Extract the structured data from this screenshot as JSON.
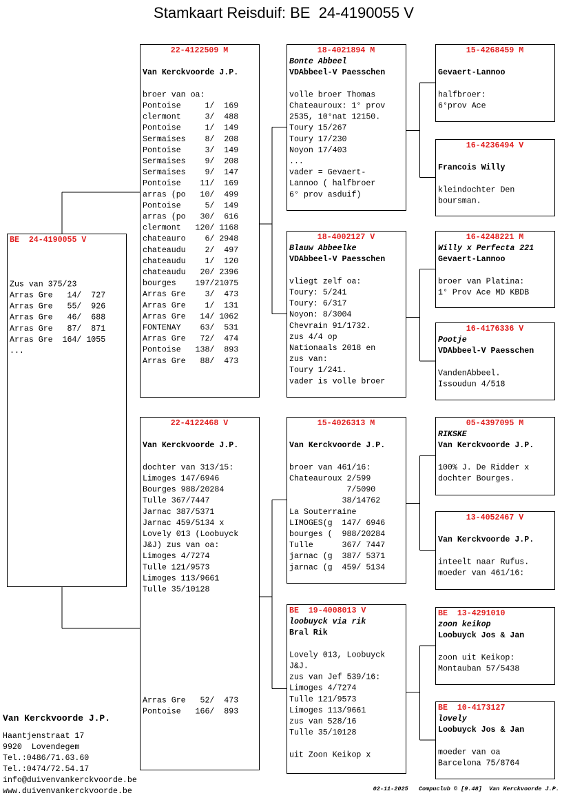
{
  "header": {
    "title": "Stamkaart Reisduif: BE  24-4190055 V"
  },
  "pigeons": [
    {
      "ring": "BE  24-4190055 V",
      "notes": [
        "Zus van 375/23",
        "Arras Gre   14/  727",
        "Arras Gre   55/  926",
        "Arras Gre   46/  688",
        "Arras Gre   87/  871",
        "Arras Gre  164/ 1055",
        "..."
      ]
    },
    {
      "ring": "22-4122509 M",
      "owner": "Van Kerckvoorde J.P.",
      "notes": [
        "broer van oa:",
        "Pontoise     1/  169",
        "clermont     3/  488",
        "Pontoise     1/  149",
        "Sermaises    8/  208",
        "Pontoise     3/  149",
        "Sermaises    9/  208",
        "Sermaises    9/  147",
        "Pontoise    11/  169",
        "arras (po   10/  499",
        "Pontoise     5/  149",
        "arras (po   30/  616",
        "clermont   120/ 1168",
        "chateauro    6/ 2948",
        "chateaudu    2/  497",
        "chateaudu    1/  120",
        "chateaudu   20/ 2396",
        "bourges    197/21075",
        "Arras Gre    3/  473",
        "Arras Gre    1/  131",
        "Arras Gre   14/ 1062",
        "FONTENAY    63/  531",
        "Arras Gre   72/  474",
        "Pontoise   138/  893",
        "Arras Gre   88/  473"
      ]
    },
    {
      "ring": "22-4122468 V",
      "owner": "Van Kerckvoorde J.P.",
      "notes": [
        "dochter van 313/15:",
        "Limoges 147/6946",
        "Bourges 988/20284",
        "Tulle 367/7447",
        "Jarnac 387/5371",
        "Jarnac 459/5134 x",
        "Lovely 013 (Loobuyck",
        "J&J) zus van oa:",
        "Limoges 4/7274",
        "Tulle 121/9573",
        "Limoges 113/9661",
        "Tulle 35/10128"
      ],
      "notes2": [
        "Arras Gre   52/  473",
        "Pontoise   166/  893"
      ]
    },
    {
      "ring": "18-4021894 M",
      "name": "Bonte Abbeel",
      "owner": "VDAbbeel-V Paesschen",
      "notes": [
        "volle broer Thomas",
        "Chateauroux: 1° prov",
        "2535, 10°nat 12150.",
        "Toury 15/267",
        "Toury 17/230",
        "Noyon 17/403",
        "...",
        "vader = Gevaert-",
        "Lannoo ( halfbroer",
        "6° prov asduif)"
      ]
    },
    {
      "ring": "18-4002127 V",
      "name": "Blauw Abbeelke",
      "owner": "VDAbbeel-V Paesschen",
      "notes": [
        "vliegt zelf oa:",
        "Toury: 5/241",
        "Toury: 6/317",
        "Noyon: 8/3004",
        "Chevrain 91/1732.",
        "zus 4/4 op",
        "Nationaals 2018 en",
        "zus van:",
        "Toury 1/241.",
        "vader is volle broer"
      ]
    },
    {
      "ring": "15-4026313 M",
      "owner": "Van Kerckvoorde J.P.",
      "notes": [
        "broer van 461/16:",
        "Chateauroux 2/599",
        "            7/5090",
        "           38/14762",
        "La Souterraine",
        "LIMOGES(g  147/ 6946",
        "bourges (  988/20284",
        "Tulle      367/ 7447",
        "jarnac (g  387/ 5371",
        "jarnac (g  459/ 5134"
      ]
    },
    {
      "ring": "BE  19-4008013 V",
      "name": "loobuyck via rik",
      "owner": "Bral Rik",
      "notes": [
        "Lovely 013, Loobuyck",
        "J&J.",
        "zus van Jef 539/16:",
        "Limoges 4/7274",
        "Tulle 121/9573",
        "Limoges 113/9661",
        "zus van 528/16",
        "Tulle 35/10128"
      ],
      "notes2": [
        "uit Zoon Keikop x"
      ]
    },
    {
      "ring": "15-4268459 M",
      "owner": "Gevaert-Lannoo",
      "notes": [
        "halfbroer:",
        "6°prov Ace"
      ]
    },
    {
      "ring": "16-4236494 V",
      "owner": "Francois Willy",
      "notes": [
        "kleindochter Den",
        "boursman."
      ]
    },
    {
      "ring": "16-4248221 M",
      "name": "Willy x Perfecta 221",
      "owner": "Gevaert-Lannoo",
      "notes": [
        "broer van Platina:",
        "1° Prov Ace MD KBDB"
      ]
    },
    {
      "ring": "16-4176336 V",
      "name": "Pootje",
      "owner": "VDAbbeel-V Paesschen",
      "notes": [
        "VandenAbbeel.",
        "Issoudun 4/518"
      ]
    },
    {
      "ring": "05-4397095 M",
      "name": "RIKSKE",
      "owner": "Van Kerckvoorde J.P.",
      "notes": [
        "100% J. De Ridder x",
        "dochter Bourges."
      ]
    },
    {
      "ring": "13-4052467 V",
      "owner": "Van Kerckvoorde J.P.",
      "notes": [
        "inteelt naar Rufus.",
        "moeder van 461/16:"
      ]
    },
    {
      "ring": "BE  13-4291010",
      "name": "zoon keikop",
      "owner": "Loobuyck Jos & Jan",
      "notes": [
        "zoon uit Keikop:",
        "Montauban 57/5438"
      ]
    },
    {
      "ring": "BE  10-4173127",
      "name": "lovely",
      "owner": "Loobuyck Jos & Jan",
      "notes": [
        "moeder van oa",
        "Barcelona 75/8764"
      ]
    }
  ],
  "breeder": {
    "name": "Van Kerckvoorde J.P.",
    "lines": [
      "Haantjenstraat 17",
      "9920  Lovendegem",
      "Tel.:0486/71.63.60",
      "Tel.:0474/72.54.17",
      "info@duivenvankerckvoorde.be",
      "www.duivenvankerckvoorde.be"
    ]
  },
  "footer": "02-11-2025   Compuclub © [9.48]  Van Kerckvoorde J.P."
}
